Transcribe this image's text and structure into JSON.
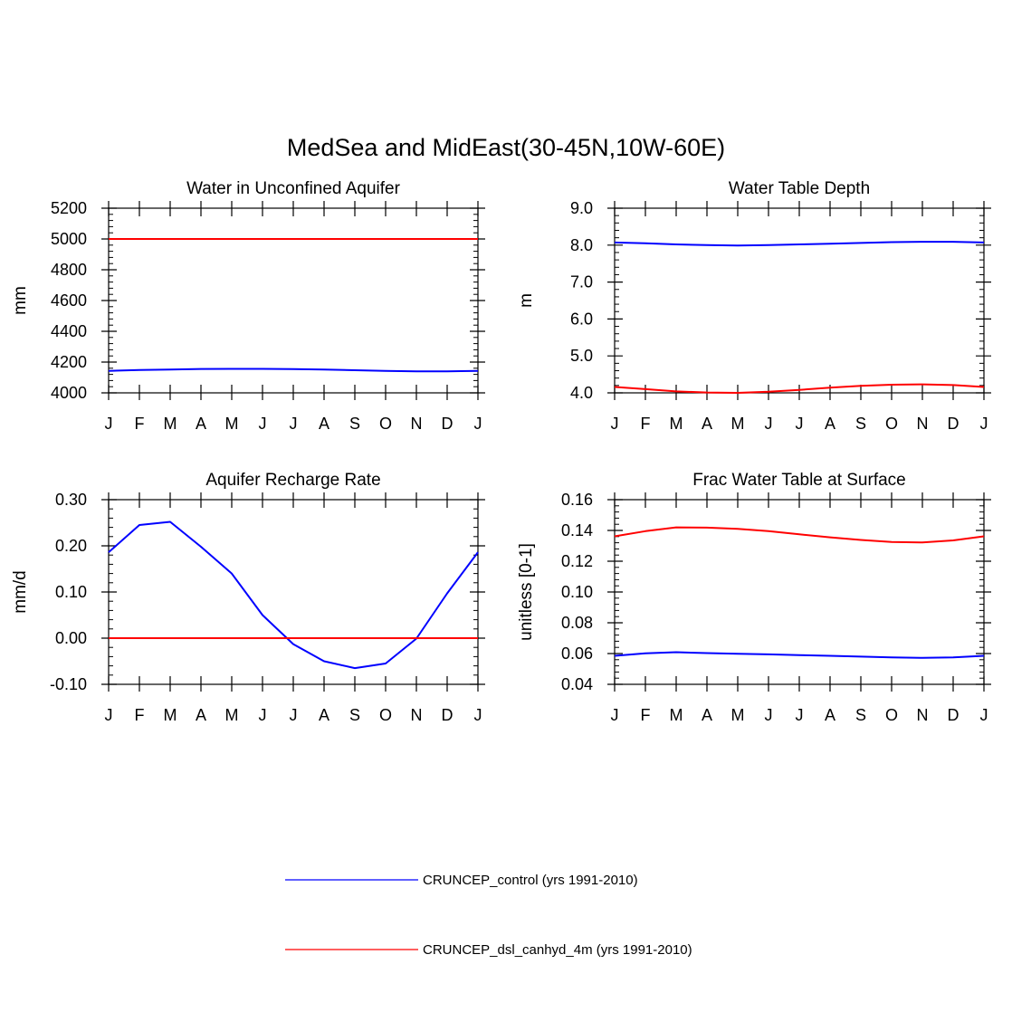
{
  "figure": {
    "title": "MedSea and MidEast(30-45N,10W-60E)"
  },
  "colors": {
    "control": "#0000ff",
    "dsl": "#ff0000"
  },
  "legend": [
    {
      "label": "CRUNCEP_control (yrs 1991-2010)",
      "color": "#0000ff"
    },
    {
      "label": "CRUNCEP_dsl_canhyd_4m (yrs 1991-2010)",
      "color": "#ff0000"
    }
  ],
  "chart_data": [
    {
      "type": "line",
      "title": "Water in Unconfined Aquifer",
      "xlabel": "",
      "ylabel": "mm",
      "categories": [
        "J",
        "F",
        "M",
        "A",
        "M",
        "J",
        "J",
        "A",
        "S",
        "O",
        "N",
        "D",
        "J"
      ],
      "ylim": [
        4000,
        5200
      ],
      "yticks": [
        "4000",
        "4200",
        "4400",
        "4600",
        "4800",
        "5000",
        "5200"
      ],
      "ytick_values": [
        4000,
        4200,
        4400,
        4600,
        4800,
        5000,
        5200
      ],
      "series": [
        {
          "name": "CRUNCEP_control (yrs 1991-2010)",
          "values": [
            4143,
            4148,
            4152,
            4155,
            4156,
            4156,
            4154,
            4151,
            4147,
            4143,
            4140,
            4140,
            4143
          ]
        },
        {
          "name": "CRUNCEP_dsl_canhyd_4m (yrs 1991-2010)",
          "values": [
            5000,
            5000,
            5000,
            5000,
            5000,
            5000,
            5000,
            5000,
            5000,
            5000,
            5000,
            5000,
            5000
          ]
        }
      ]
    },
    {
      "type": "line",
      "title": "Water Table Depth",
      "xlabel": "",
      "ylabel": "m",
      "categories": [
        "J",
        "F",
        "M",
        "A",
        "M",
        "J",
        "J",
        "A",
        "S",
        "O",
        "N",
        "D",
        "J"
      ],
      "ylim": [
        4.0,
        9.0
      ],
      "yticks": [
        "4.0",
        "5.0",
        "6.0",
        "7.0",
        "8.0",
        "9.0"
      ],
      "ytick_values": [
        4,
        5,
        6,
        7,
        8,
        9
      ],
      "series": [
        {
          "name": "CRUNCEP_control (yrs 1991-2010)",
          "values": [
            8.07,
            8.05,
            8.02,
            8.0,
            7.99,
            8.0,
            8.02,
            8.04,
            8.06,
            8.08,
            8.09,
            8.09,
            8.07
          ]
        },
        {
          "name": "CRUNCEP_dsl_canhyd_4m (yrs 1991-2010)",
          "values": [
            4.16,
            4.1,
            4.04,
            4.01,
            4.0,
            4.03,
            4.08,
            4.14,
            4.19,
            4.22,
            4.23,
            4.21,
            4.16
          ]
        }
      ]
    },
    {
      "type": "line",
      "title": "Aquifer Recharge Rate",
      "xlabel": "",
      "ylabel": "mm/d",
      "categories": [
        "J",
        "F",
        "M",
        "A",
        "M",
        "J",
        "J",
        "A",
        "S",
        "O",
        "N",
        "D",
        "J"
      ],
      "ylim": [
        -0.1,
        0.3
      ],
      "yticks": [
        "-0.10",
        "0.00",
        "0.10",
        "0.20",
        "0.30"
      ],
      "ytick_values": [
        -0.1,
        0,
        0.1,
        0.2,
        0.3
      ],
      "series": [
        {
          "name": "CRUNCEP_control (yrs 1991-2010)",
          "values": [
            0.186,
            0.245,
            0.252,
            0.198,
            0.14,
            0.05,
            -0.013,
            -0.05,
            -0.065,
            -0.055,
            -0.001,
            0.097,
            0.186
          ]
        },
        {
          "name": "CRUNCEP_dsl_canhyd_4m (yrs 1991-2010)",
          "values": [
            0,
            0,
            0,
            0,
            0,
            0,
            0,
            0,
            0,
            0,
            0,
            0,
            0
          ]
        }
      ]
    },
    {
      "type": "line",
      "title": "Frac Water Table at Surface",
      "xlabel": "",
      "ylabel": "unitless [0-1]",
      "categories": [
        "J",
        "F",
        "M",
        "A",
        "M",
        "J",
        "J",
        "A",
        "S",
        "O",
        "N",
        "D",
        "J"
      ],
      "ylim": [
        0.04,
        0.16
      ],
      "yticks": [
        "0.04",
        "0.06",
        "0.08",
        "0.10",
        "0.12",
        "0.14",
        "0.16"
      ],
      "ytick_values": [
        0.04,
        0.06,
        0.08,
        0.1,
        0.12,
        0.14,
        0.16
      ],
      "series": [
        {
          "name": "CRUNCEP_control (yrs 1991-2010)",
          "values": [
            0.0585,
            0.0602,
            0.0609,
            0.0603,
            0.0599,
            0.0595,
            0.059,
            0.0585,
            0.058,
            0.0575,
            0.0572,
            0.0575,
            0.0585
          ]
        },
        {
          "name": "CRUNCEP_dsl_canhyd_4m (yrs 1991-2010)",
          "values": [
            0.1362,
            0.1395,
            0.142,
            0.1418,
            0.141,
            0.1395,
            0.1375,
            0.1355,
            0.1338,
            0.1325,
            0.1322,
            0.1335,
            0.1362
          ]
        }
      ]
    }
  ]
}
